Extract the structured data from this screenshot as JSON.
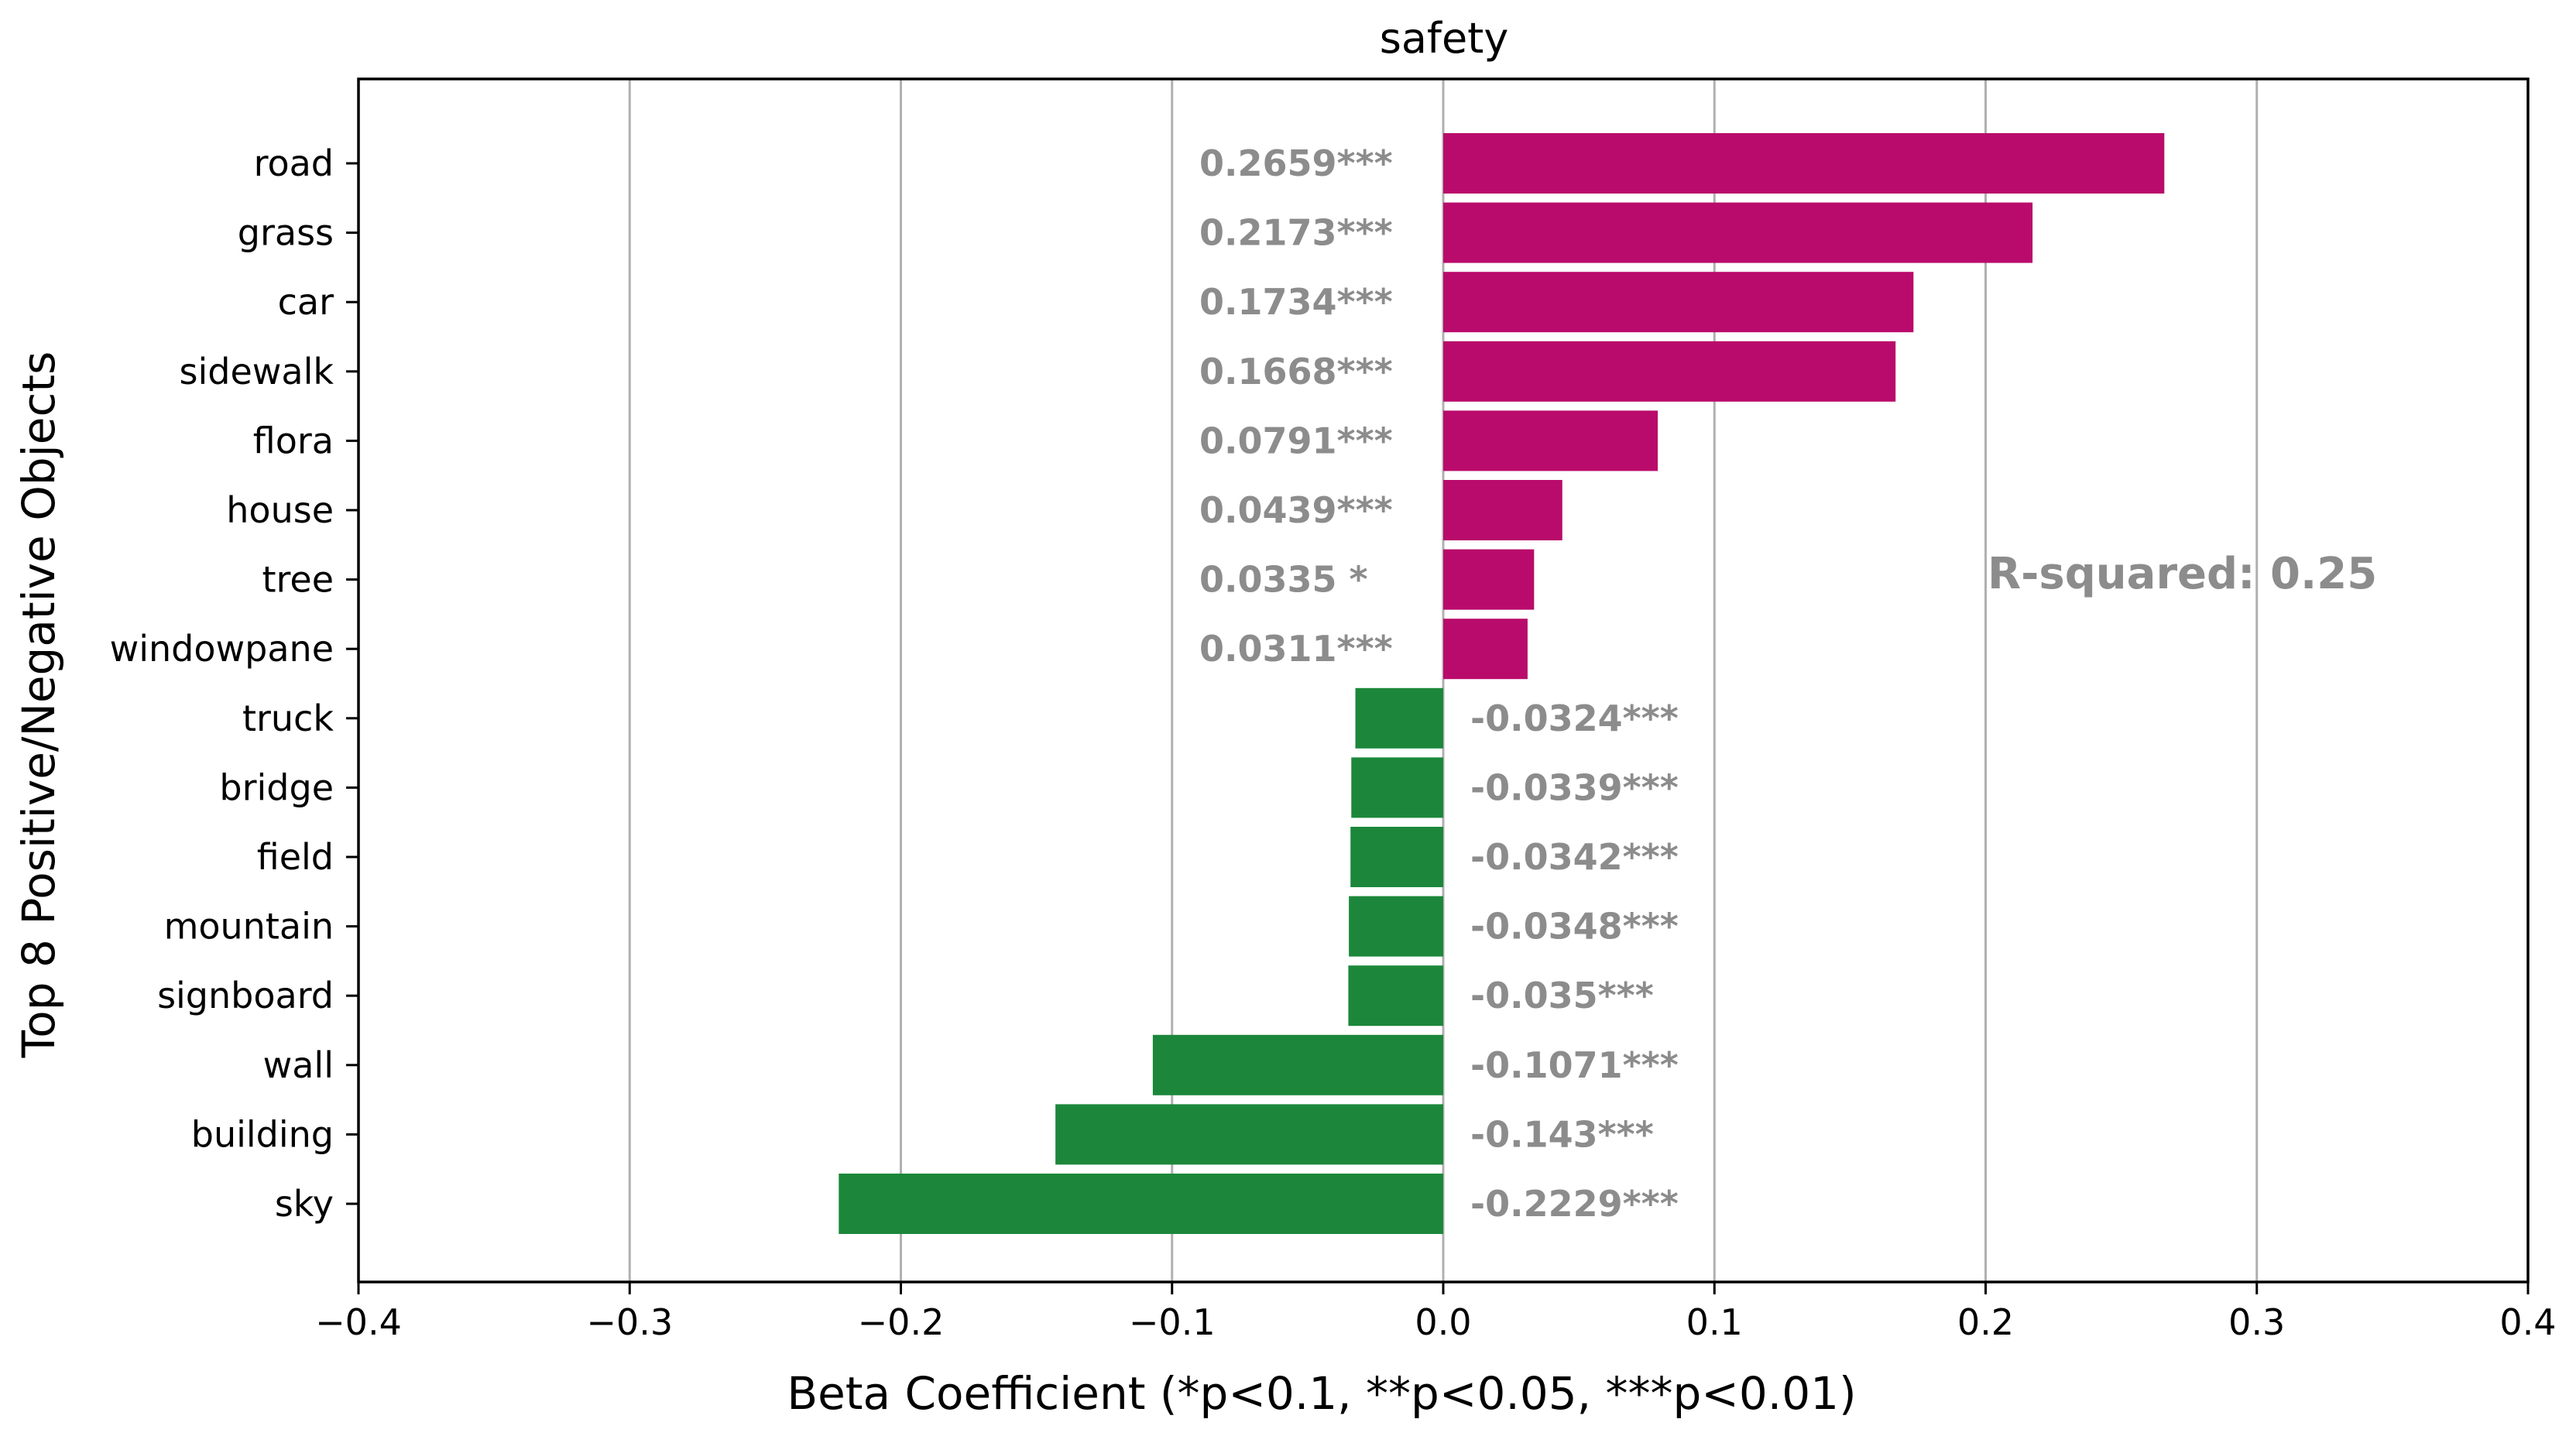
{
  "chart_data": {
    "type": "bar",
    "orientation": "horizontal",
    "title": "safety",
    "xlabel": "Beta Coefficient (*p<0.1, **p<0.05,  ***p<0.01)",
    "ylabel": "Top 8 Positive/Negative Objects",
    "xlim": [
      -0.4,
      0.4
    ],
    "xticks": [
      -0.4,
      -0.3,
      -0.2,
      -0.1,
      0.0,
      0.1,
      0.2,
      0.3,
      0.4
    ],
    "xtick_labels": [
      "−0.4",
      "−0.3",
      "−0.2",
      "−0.1",
      "0.0",
      "0.1",
      "0.2",
      "0.3",
      "0.4"
    ],
    "grid": "vertical",
    "categories": [
      "road",
      "grass",
      "car",
      "sidewalk",
      "flora",
      "house",
      "tree",
      "windowpane",
      "truck",
      "bridge",
      "field",
      "mountain",
      "signboard",
      "wall",
      "building",
      "sky"
    ],
    "values": [
      0.2659,
      0.2173,
      0.1734,
      0.1668,
      0.0791,
      0.0439,
      0.0335,
      0.0311,
      -0.0324,
      -0.0339,
      -0.0342,
      -0.0348,
      -0.035,
      -0.1071,
      -0.143,
      -0.2229
    ],
    "labels": [
      "0.2659***",
      "0.2173***",
      "0.1734***",
      "0.1668***",
      "0.0791***",
      "0.0439***",
      "0.0335 *",
      "0.0311***",
      "-0.0324***",
      "-0.0339***",
      "-0.0342***",
      "-0.0348***",
      "-0.035***",
      "-0.1071***",
      "-0.143***",
      "-0.2229***"
    ],
    "positive_color": "#b90b6b",
    "negative_color": "#1c873a",
    "label_color": "#8c8c8c",
    "annotation": "R-squared: 0.25"
  }
}
